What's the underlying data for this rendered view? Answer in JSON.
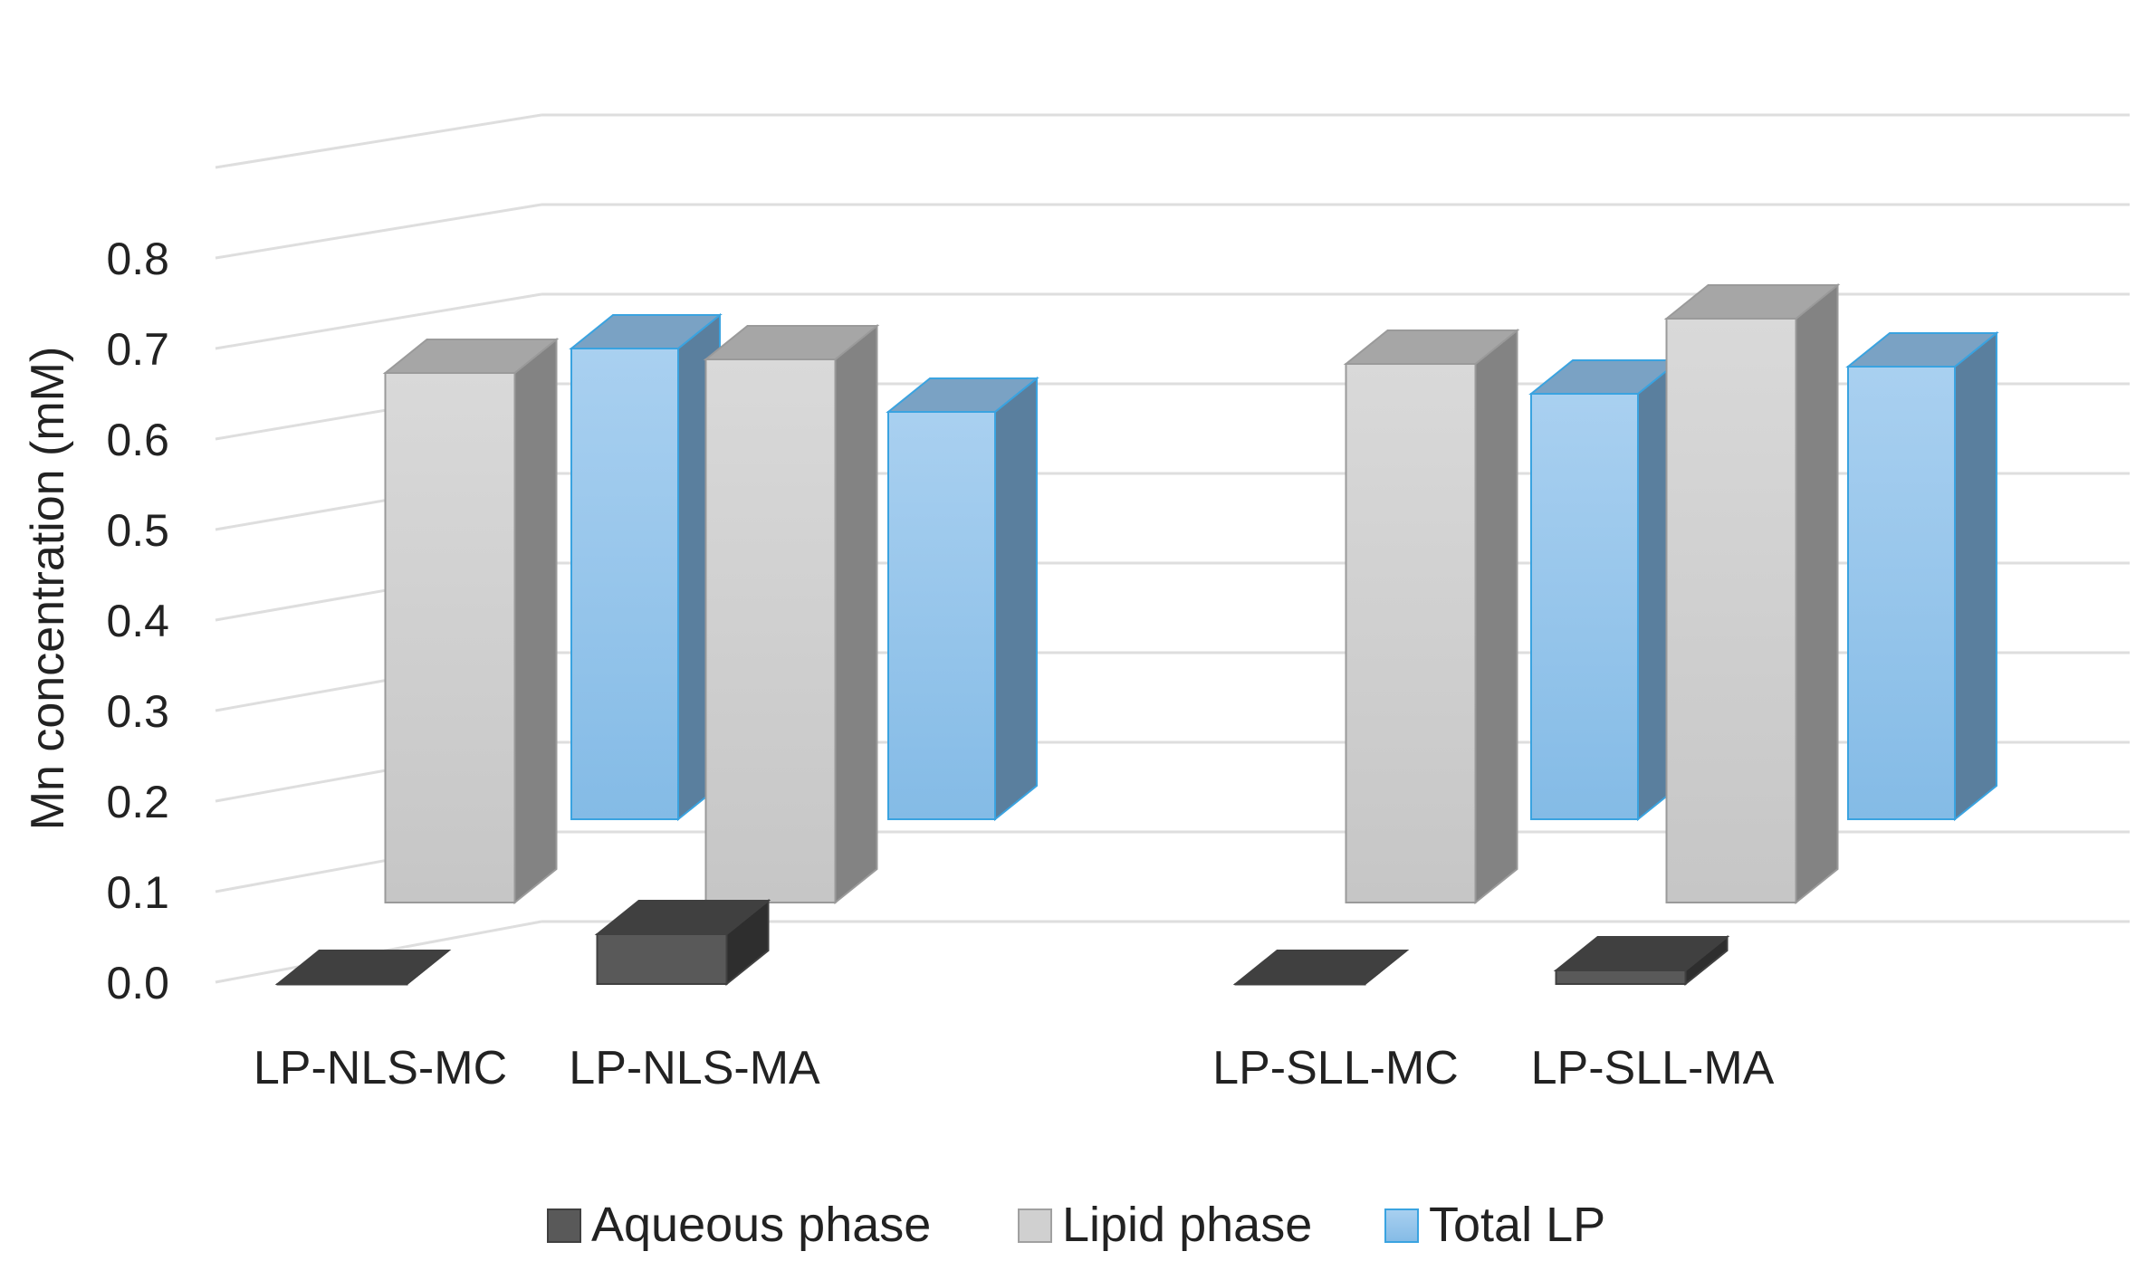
{
  "chart_data": {
    "type": "bar",
    "style": "3d-clustered-column",
    "title": "",
    "xlabel": "",
    "ylabel": "Mn concentration (mM)",
    "ylim": [
      0,
      0.8
    ],
    "y_ticks": [
      "0.0",
      "0.1",
      "0.2",
      "0.3",
      "0.4",
      "0.5",
      "0.6",
      "0.7",
      "0.8"
    ],
    "categories": [
      "LP-NLS-MC",
      "LP-NLS-MA",
      "LP-SLL-MC",
      "LP-SLL-MA"
    ],
    "series": [
      {
        "name": "Aqueous phase",
        "color": "#595959",
        "values": [
          0.0,
          0.055,
          0.0,
          0.015
        ]
      },
      {
        "name": "Lipid phase",
        "color": "#d0d0d0",
        "values": [
          0.585,
          0.6,
          0.595,
          0.645
        ]
      },
      {
        "name": "Total LP",
        "color": "#8fc0e8",
        "values": [
          0.52,
          0.45,
          0.47,
          0.5
        ]
      }
    ],
    "grid": true,
    "legend_position": "bottom"
  }
}
